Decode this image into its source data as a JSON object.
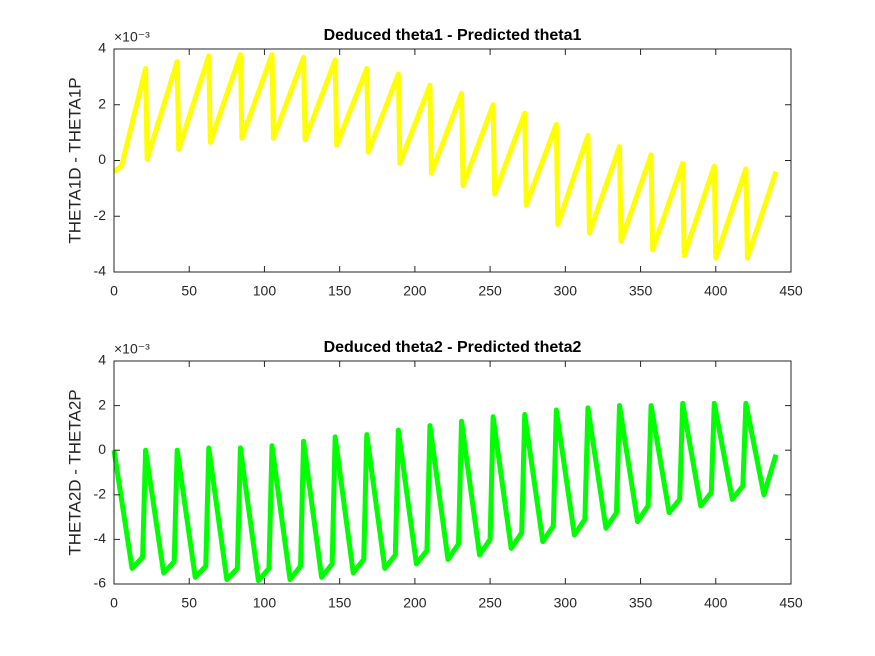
{
  "chart_data": [
    {
      "type": "line",
      "title": "Deduced theta1 - Predicted theta1",
      "ylabel": "THETA1D - THETA1P",
      "y_exponent": "×10⁻³",
      "xlim": [
        0,
        450
      ],
      "xticks": [
        0,
        50,
        100,
        150,
        200,
        250,
        300,
        350,
        400,
        450
      ],
      "ylim": [
        -4,
        4
      ],
      "yticks": [
        -4,
        -2,
        0,
        2,
        4
      ],
      "color": "#ffff00",
      "x": [
        0,
        5,
        21,
        22,
        42,
        43,
        63,
        64,
        84,
        85,
        105,
        106,
        126,
        127,
        147,
        148,
        168,
        169,
        189,
        190,
        210,
        211,
        231,
        232,
        252,
        253,
        273,
        274,
        294,
        295,
        315,
        316,
        336,
        337,
        357,
        358,
        378,
        379,
        399,
        400,
        420,
        421,
        440
      ],
      "values": [
        -0.4,
        -0.2,
        3.3,
        0.05,
        3.55,
        0.4,
        3.75,
        0.65,
        3.8,
        0.8,
        3.8,
        0.8,
        3.7,
        0.75,
        3.6,
        0.55,
        3.3,
        0.3,
        3.1,
        -0.1,
        2.7,
        -0.45,
        2.4,
        -0.9,
        2.0,
        -1.2,
        1.7,
        -1.6,
        1.3,
        -2.3,
        0.9,
        -2.6,
        0.5,
        -2.9,
        0.2,
        -3.2,
        -0.1,
        -3.4,
        -0.2,
        -3.5,
        -0.3,
        -3.5,
        -0.4
      ]
    },
    {
      "type": "line",
      "title": "Deduced theta2 - Predicted theta2",
      "ylabel": "THETA2D - THETA2P",
      "y_exponent": "×10⁻³",
      "xlim": [
        0,
        450
      ],
      "xticks": [
        0,
        50,
        100,
        150,
        200,
        250,
        300,
        350,
        400,
        450
      ],
      "ylim": [
        -6,
        4
      ],
      "yticks": [
        -6,
        -4,
        -2,
        0,
        2,
        4
      ],
      "color": "#00ff00",
      "x": [
        0,
        12,
        19,
        21,
        33,
        40,
        42,
        54,
        61,
        63,
        75,
        82,
        84,
        96,
        103,
        105,
        117,
        124,
        126,
        138,
        145,
        147,
        159,
        166,
        168,
        180,
        187,
        189,
        201,
        208,
        210,
        222,
        229,
        231,
        243,
        250,
        252,
        264,
        271,
        273,
        285,
        292,
        294,
        306,
        313,
        315,
        327,
        334,
        336,
        348,
        355,
        357,
        369,
        376,
        378,
        390,
        397,
        399,
        411,
        418,
        420,
        432,
        440
      ],
      "values": [
        0,
        -5.3,
        -4.8,
        0,
        -5.5,
        -5.0,
        0,
        -5.7,
        -5.2,
        0.1,
        -5.8,
        -5.3,
        0.1,
        -5.85,
        -5.3,
        0.2,
        -5.8,
        -5.2,
        0.4,
        -5.7,
        -5.1,
        0.6,
        -5.5,
        -4.9,
        0.7,
        -5.3,
        -4.7,
        0.9,
        -5.1,
        -4.5,
        1.1,
        -4.9,
        -4.2,
        1.3,
        -4.7,
        -4.0,
        1.5,
        -4.4,
        -3.7,
        1.6,
        -4.1,
        -3.4,
        1.8,
        -3.8,
        -3.1,
        1.9,
        -3.5,
        -2.8,
        2.0,
        -3.2,
        -2.5,
        2.0,
        -2.8,
        -2.2,
        2.1,
        -2.5,
        -1.9,
        2.1,
        -2.2,
        -1.6,
        2.1,
        -2.0,
        -0.2
      ]
    }
  ]
}
